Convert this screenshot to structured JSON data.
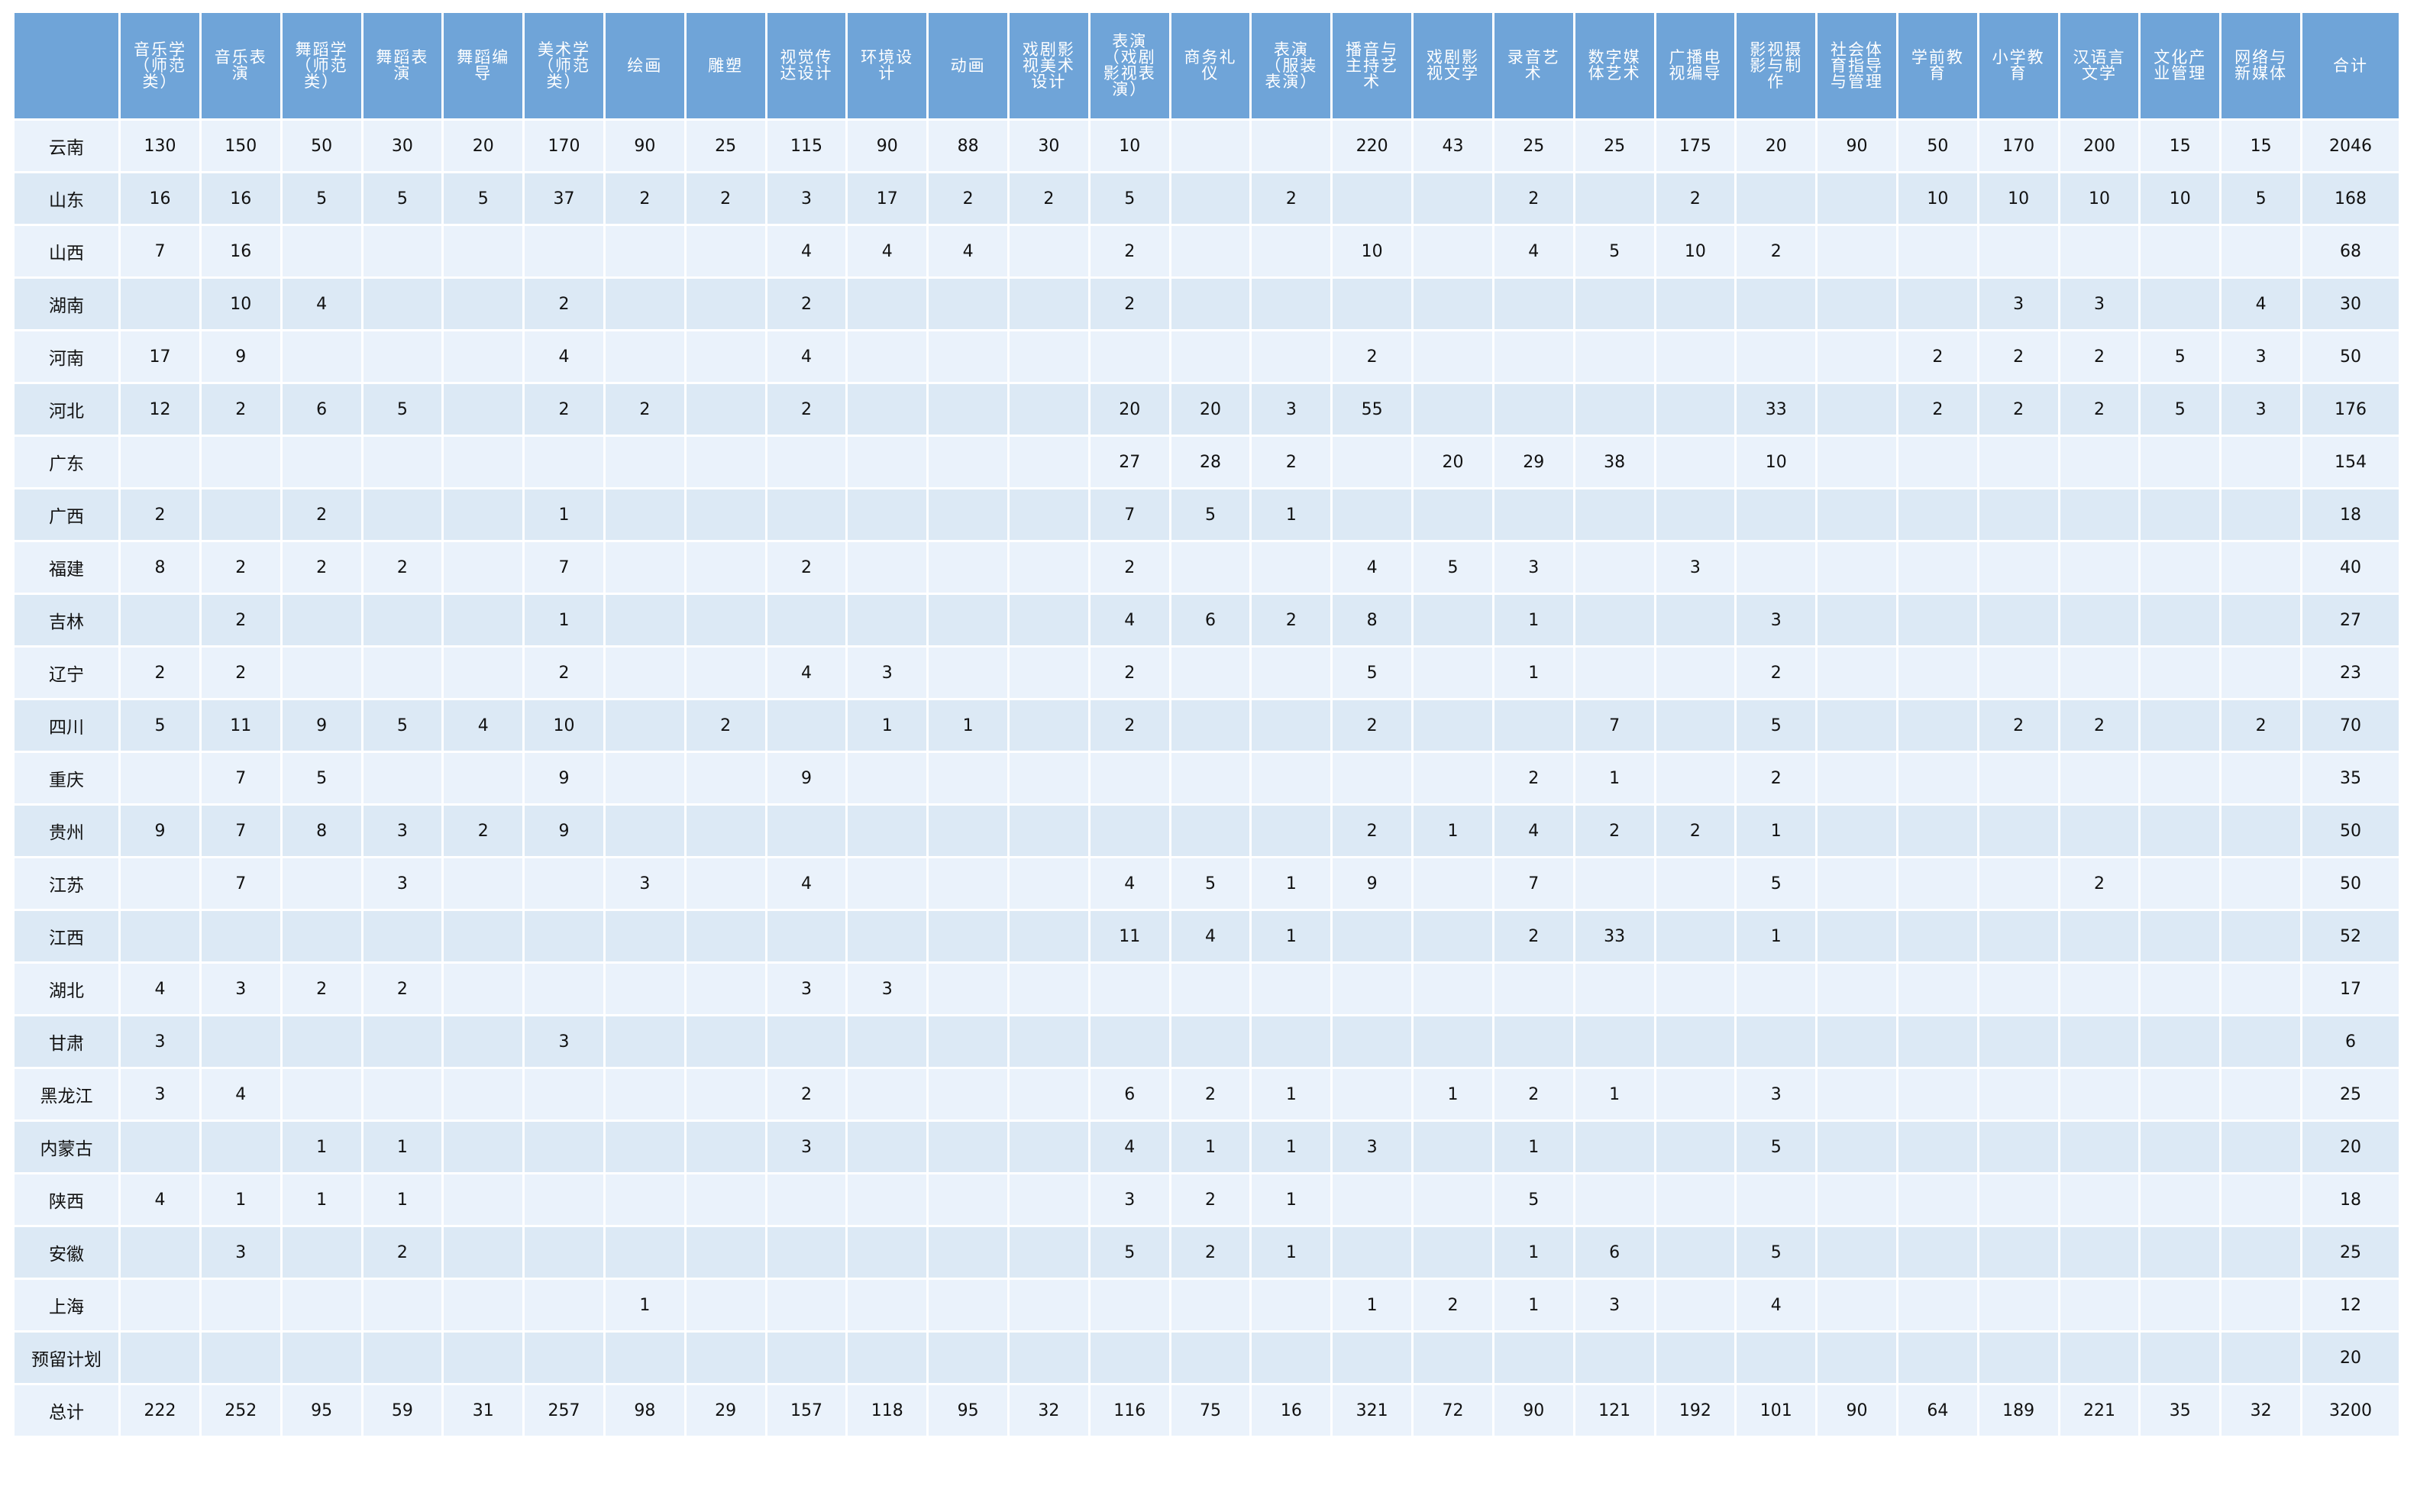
{
  "columns": [
    "音乐学（师范类）",
    "音乐表演",
    "舞蹈学（师范类）",
    "舞蹈表演",
    "舞蹈编导",
    "美术学（师范类）",
    "绘画",
    "雕塑",
    "视觉传达设计",
    "环境设计",
    "动画",
    "戏剧影视美术设计",
    "表演（戏剧影视表演）",
    "商务礼仪",
    "表演（服装表演）",
    "播音与主持艺术",
    "戏剧影视文学",
    "录音艺术",
    "数字媒体艺术",
    "广播电视编导",
    "影视摄影与制作",
    "社会体育指导与管理",
    "学前教育",
    "小学教育",
    "汉语言文学",
    "文化产业管理",
    "网络与新媒体",
    "合计"
  ],
  "rows": [
    {
      "province": "云南",
      "cells": [
        "130",
        "150",
        "50",
        "30",
        "20",
        "170",
        "90",
        "25",
        "115",
        "90",
        "88",
        "30",
        "10",
        "",
        "",
        "220",
        "43",
        "25",
        "25",
        "175",
        "20",
        "90",
        "50",
        "170",
        "200",
        "15",
        "15",
        "2046"
      ]
    },
    {
      "province": "山东",
      "cells": [
        "16",
        "16",
        "5",
        "5",
        "5",
        "37",
        "2",
        "2",
        "3",
        "17",
        "2",
        "2",
        "5",
        "",
        "2",
        "",
        "",
        "2",
        "",
        "2",
        "",
        "",
        "10",
        "10",
        "10",
        "10",
        "5",
        "168"
      ]
    },
    {
      "province": "山西",
      "cells": [
        "7",
        "16",
        "",
        "",
        "",
        "",
        "",
        "",
        "4",
        "4",
        "4",
        "",
        "2",
        "",
        "",
        "10",
        "",
        "4",
        "5",
        "10",
        "2",
        "",
        "",
        "",
        "",
        "",
        "",
        "68"
      ]
    },
    {
      "province": "湖南",
      "cells": [
        "",
        "10",
        "4",
        "",
        "",
        "2",
        "",
        "",
        "2",
        "",
        "",
        "",
        "2",
        "",
        "",
        "",
        "",
        "",
        "",
        "",
        "",
        "",
        "",
        "3",
        "3",
        "",
        "4",
        "30"
      ]
    },
    {
      "province": "河南",
      "cells": [
        "17",
        "9",
        "",
        "",
        "",
        "4",
        "",
        "",
        "4",
        "",
        "",
        "",
        "",
        "",
        "",
        "2",
        "",
        "",
        "",
        "",
        "",
        "",
        "2",
        "2",
        "2",
        "5",
        "3",
        "50"
      ]
    },
    {
      "province": "河北",
      "cells": [
        "12",
        "2",
        "6",
        "5",
        "",
        "2",
        "2",
        "",
        "2",
        "",
        "",
        "",
        "20",
        "20",
        "3",
        "55",
        "",
        "",
        "",
        "",
        "33",
        "",
        "2",
        "2",
        "2",
        "5",
        "3",
        "176"
      ]
    },
    {
      "province": "广东",
      "cells": [
        "",
        "",
        "",
        "",
        "",
        "",
        "",
        "",
        "",
        "",
        "",
        "",
        "27",
        "28",
        "2",
        "",
        "20",
        "29",
        "38",
        "",
        "10",
        "",
        "",
        "",
        "",
        "",
        "",
        "154"
      ]
    },
    {
      "province": "广西",
      "cells": [
        "2",
        "",
        "2",
        "",
        "",
        "1",
        "",
        "",
        "",
        "",
        "",
        "",
        "7",
        "5",
        "1",
        "",
        "",
        "",
        "",
        "",
        "",
        "",
        "",
        "",
        "",
        "",
        "",
        "18"
      ]
    },
    {
      "province": "福建",
      "cells": [
        "8",
        "2",
        "2",
        "2",
        "",
        "7",
        "",
        "",
        "2",
        "",
        "",
        "",
        "2",
        "",
        "",
        "4",
        "5",
        "3",
        "",
        "3",
        "",
        "",
        "",
        "",
        "",
        "",
        "",
        "40"
      ]
    },
    {
      "province": "吉林",
      "cells": [
        "",
        "2",
        "",
        "",
        "",
        "1",
        "",
        "",
        "",
        "",
        "",
        "",
        "4",
        "6",
        "2",
        "8",
        "",
        "1",
        "",
        "",
        "3",
        "",
        "",
        "",
        "",
        "",
        "",
        "27"
      ]
    },
    {
      "province": "辽宁",
      "cells": [
        "2",
        "2",
        "",
        "",
        "",
        "2",
        "",
        "",
        "4",
        "3",
        "",
        "",
        "2",
        "",
        "",
        "5",
        "",
        "1",
        "",
        "",
        "2",
        "",
        "",
        "",
        "",
        "",
        "",
        "23"
      ]
    },
    {
      "province": "四川",
      "cells": [
        "5",
        "11",
        "9",
        "5",
        "4",
        "10",
        "",
        "2",
        "",
        "1",
        "1",
        "",
        "2",
        "",
        "",
        "2",
        "",
        "",
        "7",
        "",
        "5",
        "",
        "",
        "2",
        "2",
        "",
        "2",
        "70"
      ]
    },
    {
      "province": "重庆",
      "cells": [
        "",
        "7",
        "5",
        "",
        "",
        "9",
        "",
        "",
        "9",
        "",
        "",
        "",
        "",
        "",
        "",
        "",
        "",
        "2",
        "1",
        "",
        "2",
        "",
        "",
        "",
        "",
        "",
        "",
        "35"
      ]
    },
    {
      "province": "贵州",
      "cells": [
        "9",
        "7",
        "8",
        "3",
        "2",
        "9",
        "",
        "",
        "",
        "",
        "",
        "",
        "",
        "",
        "",
        "2",
        "1",
        "4",
        "2",
        "2",
        "1",
        "",
        "",
        "",
        "",
        "",
        "",
        "50"
      ]
    },
    {
      "province": "江苏",
      "cells": [
        "",
        "7",
        "",
        "3",
        "",
        "",
        "3",
        "",
        "4",
        "",
        "",
        "",
        "4",
        "5",
        "1",
        "9",
        "",
        "7",
        "",
        "",
        "5",
        "",
        "",
        "",
        "2",
        "",
        "",
        "50"
      ]
    },
    {
      "province": "江西",
      "cells": [
        "",
        "",
        "",
        "",
        "",
        "",
        "",
        "",
        "",
        "",
        "",
        "",
        "11",
        "4",
        "1",
        "",
        "",
        "2",
        "33",
        "",
        "1",
        "",
        "",
        "",
        "",
        "",
        "",
        "52"
      ]
    },
    {
      "province": "湖北",
      "cells": [
        "4",
        "3",
        "2",
        "2",
        "",
        "",
        "",
        "",
        "3",
        "3",
        "",
        "",
        "",
        "",
        "",
        "",
        "",
        "",
        "",
        "",
        "",
        "",
        "",
        "",
        "",
        "",
        "",
        "17"
      ]
    },
    {
      "province": "甘肃",
      "cells": [
        "3",
        "",
        "",
        "",
        "",
        "3",
        "",
        "",
        "",
        "",
        "",
        "",
        "",
        "",
        "",
        "",
        "",
        "",
        "",
        "",
        "",
        "",
        "",
        "",
        "",
        "",
        "",
        "6"
      ]
    },
    {
      "province": "黑龙江",
      "cells": [
        "3",
        "4",
        "",
        "",
        "",
        "",
        "",
        "",
        "2",
        "",
        "",
        "",
        "6",
        "2",
        "1",
        "",
        "1",
        "2",
        "1",
        "",
        "3",
        "",
        "",
        "",
        "",
        "",
        "",
        "25"
      ]
    },
    {
      "province": "内蒙古",
      "cells": [
        "",
        "",
        "1",
        "1",
        "",
        "",
        "",
        "",
        "3",
        "",
        "",
        "",
        "4",
        "1",
        "1",
        "3",
        "",
        "1",
        "",
        "",
        "5",
        "",
        "",
        "",
        "",
        "",
        "",
        "20"
      ]
    },
    {
      "province": "陕西",
      "cells": [
        "4",
        "1",
        "1",
        "1",
        "",
        "",
        "",
        "",
        "",
        "",
        "",
        "",
        "3",
        "2",
        "1",
        "",
        "",
        "5",
        "",
        "",
        "",
        "",
        "",
        "",
        "",
        "",
        "",
        "18"
      ]
    },
    {
      "province": "安徽",
      "cells": [
        "",
        "3",
        "",
        "2",
        "",
        "",
        "",
        "",
        "",
        "",
        "",
        "",
        "5",
        "2",
        "1",
        "",
        "",
        "1",
        "6",
        "",
        "5",
        "",
        "",
        "",
        "",
        "",
        "",
        "25"
      ]
    },
    {
      "province": "上海",
      "cells": [
        "",
        "",
        "",
        "",
        "",
        "",
        "1",
        "",
        "",
        "",
        "",
        "",
        "",
        "",
        "",
        "1",
        "2",
        "1",
        "3",
        "",
        "4",
        "",
        "",
        "",
        "",
        "",
        "",
        "12"
      ]
    },
    {
      "province": "预留计划",
      "cells": [
        "",
        "",
        "",
        "",
        "",
        "",
        "",
        "",
        "",
        "",
        "",
        "",
        "",
        "",
        "",
        "",
        "",
        "",
        "",
        "",
        "",
        "",
        "",
        "",
        "",
        "",
        "",
        "20"
      ]
    },
    {
      "province": "总计",
      "cells": [
        "222",
        "252",
        "95",
        "59",
        "31",
        "257",
        "98",
        "29",
        "157",
        "118",
        "95",
        "32",
        "116",
        "75",
        "16",
        "321",
        "72",
        "90",
        "121",
        "192",
        "101",
        "90",
        "64",
        "189",
        "221",
        "35",
        "32",
        "3200"
      ]
    }
  ],
  "colors": {
    "header_bg": "#6fa4d8",
    "row_light": "#eaf2fb",
    "row_dark": "#dce9f5",
    "border": "#3c7fc4"
  }
}
